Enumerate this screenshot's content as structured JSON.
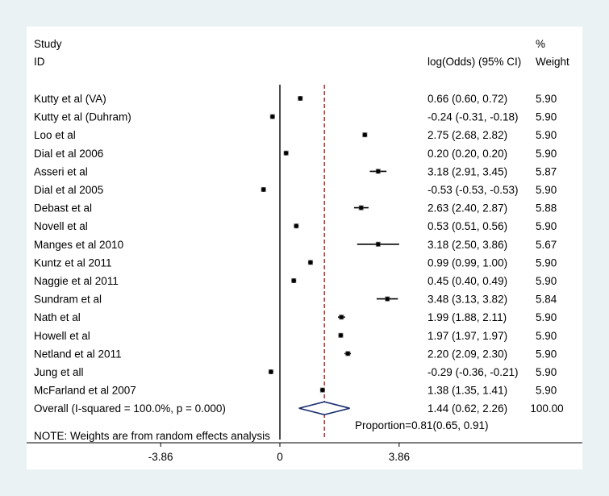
{
  "chart_data": {
    "type": "forest",
    "header": {
      "col1_line1": "Study",
      "col1_line2": "ID",
      "col2": "log(Odds) (95% CI)",
      "col3_line1": "%",
      "col3_line2": "Weight"
    },
    "studies": [
      {
        "name": "Kutty et al (VA)",
        "est": 0.66,
        "lo": 0.6,
        "hi": 0.72,
        "ci": "0.66 (0.60, 0.72)",
        "weight": "5.90"
      },
      {
        "name": "Kutty et al (Duhram)",
        "est": -0.24,
        "lo": -0.31,
        "hi": -0.18,
        "ci": "-0.24 (-0.31, -0.18)",
        "weight": "5.90"
      },
      {
        "name": "Loo et al",
        "est": 2.75,
        "lo": 2.68,
        "hi": 2.82,
        "ci": "2.75 (2.68, 2.82)",
        "weight": "5.90"
      },
      {
        "name": "Dial et al 2006",
        "est": 0.2,
        "lo": 0.2,
        "hi": 0.2,
        "ci": "0.20 (0.20, 0.20)",
        "weight": "5.90"
      },
      {
        "name": "Asseri et al",
        "est": 3.18,
        "lo": 2.91,
        "hi": 3.45,
        "ci": "3.18 (2.91, 3.45)",
        "weight": "5.87"
      },
      {
        "name": "Dial et al 2005",
        "est": -0.53,
        "lo": -0.53,
        "hi": -0.53,
        "ci": "-0.53 (-0.53, -0.53)",
        "weight": "5.90"
      },
      {
        "name": "Debast et al",
        "est": 2.63,
        "lo": 2.4,
        "hi": 2.87,
        "ci": "2.63 (2.40, 2.87)",
        "weight": "5.88"
      },
      {
        "name": "Novell et al",
        "est": 0.53,
        "lo": 0.51,
        "hi": 0.56,
        "ci": "0.53 (0.51, 0.56)",
        "weight": "5.90"
      },
      {
        "name": "Manges et al 2010",
        "est": 3.18,
        "lo": 2.5,
        "hi": 3.86,
        "ci": "3.18 (2.50, 3.86)",
        "weight": "5.67"
      },
      {
        "name": "Kuntz et al 2011",
        "est": 0.99,
        "lo": 0.99,
        "hi": 1.0,
        "ci": "0.99 (0.99, 1.00)",
        "weight": "5.90"
      },
      {
        "name": "Naggie et al 2011",
        "est": 0.45,
        "lo": 0.4,
        "hi": 0.49,
        "ci": "0.45 (0.40, 0.49)",
        "weight": "5.90"
      },
      {
        "name": "Sundram et al",
        "est": 3.48,
        "lo": 3.13,
        "hi": 3.82,
        "ci": "3.48 (3.13, 3.82)",
        "weight": "5.84"
      },
      {
        "name": "Nath et al",
        "est": 1.99,
        "lo": 1.88,
        "hi": 2.11,
        "ci": "1.99 (1.88, 2.11)",
        "weight": "5.90"
      },
      {
        "name": "Howell et al",
        "est": 1.97,
        "lo": 1.97,
        "hi": 1.97,
        "ci": "1.97 (1.97, 1.97)",
        "weight": "5.90"
      },
      {
        "name": "Netland et al 2011",
        "est": 2.2,
        "lo": 2.09,
        "hi": 2.3,
        "ci": "2.20 (2.09, 2.30)",
        "weight": "5.90"
      },
      {
        "name": "Jung et all",
        "est": -0.29,
        "lo": -0.36,
        "hi": -0.21,
        "ci": "-0.29 (-0.36, -0.21)",
        "weight": "5.90"
      },
      {
        "name": "McFarland et al 2007",
        "est": 1.38,
        "lo": 1.35,
        "hi": 1.41,
        "ci": "1.38 (1.35, 1.41)",
        "weight": "5.90"
      }
    ],
    "overall": {
      "name": "Overall  (I-squared = 100.0%, p = 0.000)",
      "est": 1.44,
      "lo": 0.62,
      "hi": 2.26,
      "ci": "1.44 (0.62, 2.26)",
      "weight": "100.00"
    },
    "annotation": "Proportion=0.81(0.65, 0.91)",
    "note": "NOTE: Weights are from random effects analysis",
    "xaxis": {
      "min": -3.86,
      "max": 3.86,
      "ticks": [
        -3.86,
        0,
        3.86
      ],
      "tick_labels": [
        "-3.86",
        "0",
        "3.86"
      ]
    },
    "null_line": 0,
    "colors": {
      "marker": "#000000",
      "overall_diamond": "#1a2e6e",
      "overall_line": "#8b1a1a"
    }
  }
}
